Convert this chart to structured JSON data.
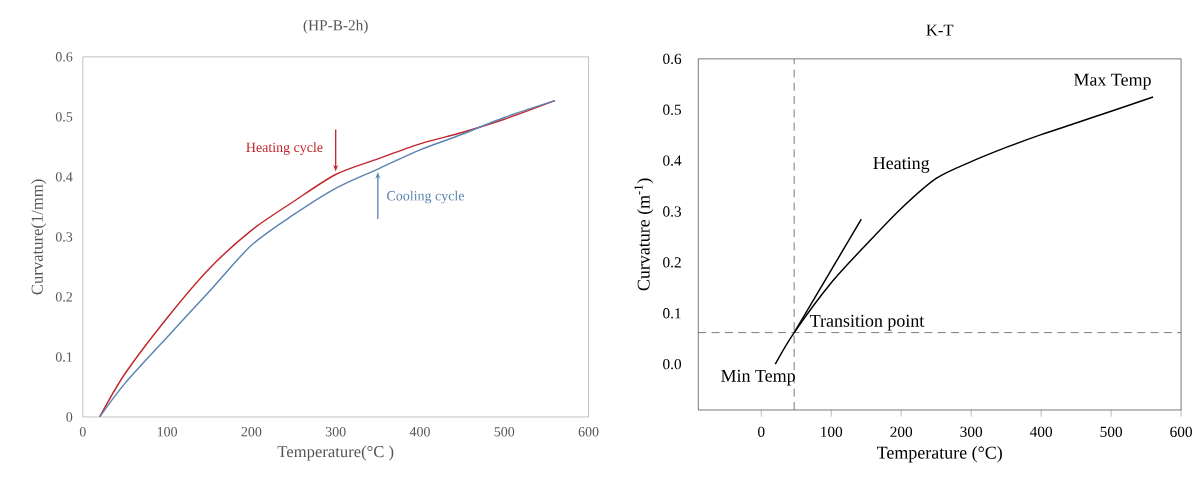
{
  "chart_data": [
    {
      "type": "line",
      "title": "(HP-B-2h)",
      "xlabel": "Temperature(°C )",
      "ylabel": "Curvature(1/mm)",
      "xlim": [
        0,
        600
      ],
      "xticks": [
        0,
        100,
        200,
        300,
        400,
        500,
        600
      ],
      "ylim": [
        0,
        0.6
      ],
      "yticks": [
        0,
        0.1,
        0.2,
        0.3,
        0.4,
        0.5,
        0.6
      ],
      "series": [
        {
          "name": "Heating cycle",
          "color": "#c0282d",
          "x": [
            20,
            50,
            100,
            150,
            200,
            250,
            300,
            350,
            400,
            450,
            500,
            560
          ],
          "values": [
            0,
            0.072,
            0.165,
            0.247,
            0.311,
            0.359,
            0.404,
            0.43,
            0.455,
            0.474,
            0.496,
            0.527
          ]
        },
        {
          "name": "Cooling cycle",
          "color": "#5b84b1",
          "x": [
            20,
            50,
            100,
            150,
            200,
            250,
            300,
            350,
            400,
            450,
            500,
            560
          ],
          "values": [
            0,
            0.056,
            0.133,
            0.209,
            0.286,
            0.337,
            0.381,
            0.413,
            0.445,
            0.471,
            0.499,
            0.527
          ]
        }
      ]
    },
    {
      "type": "line",
      "title": "K-T",
      "xlabel": "Temperature (°C)",
      "ylabel": "Curvature (m$^{-1}$)",
      "xlim": [
        -90,
        600
      ],
      "xticks": [
        0,
        100,
        200,
        300,
        400,
        500,
        600
      ],
      "ylim": [
        -0.09,
        0.6
      ],
      "yticks": [
        {
          "value": 0,
          "label": "0.0"
        },
        0.1,
        0.2,
        0.3,
        0.4,
        0.5,
        0.6
      ],
      "series": [
        {
          "color": "#000000",
          "x": [
            20,
            47,
            100,
            150,
            200,
            250,
            300,
            350,
            400,
            450,
            500,
            560
          ],
          "values": [
            0,
            0.062,
            0.16,
            0.235,
            0.306,
            0.365,
            0.398,
            0.426,
            0.451,
            0.474,
            0.497,
            0.525
          ]
        },
        {
          "color": "#000000",
          "x": [
            47,
            143
          ],
          "values": [
            0.062,
            0.285
          ]
        }
      ],
      "ref_lines": [
        {
          "axis": "x",
          "value": 47,
          "line_style": "dashed"
        },
        {
          "axis": "y",
          "value": 0.062,
          "line_style": "dashed"
        }
      ],
      "annotations": [
        {
          "text": "Heating",
          "x": 250,
          "y": 0.365
        },
        {
          "text": "Max Temp",
          "x": 560,
          "y": 0.525
        },
        {
          "text": "Transition point",
          "x": 47,
          "y": 0.062
        },
        {
          "text": "Min Temp",
          "x": 20,
          "y": 0
        }
      ]
    }
  ]
}
